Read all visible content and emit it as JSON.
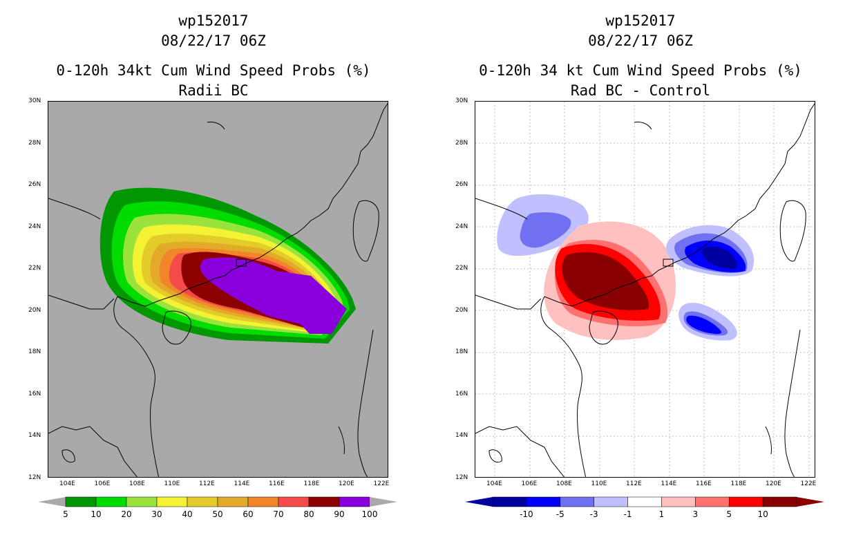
{
  "left_panel": {
    "storm_id": "wp152017",
    "datetime": "08/22/17 06Z",
    "title": "0-120h 34kt Cum Wind Speed Probs (%)",
    "subtitle": "Radii BC",
    "background_color": "#a9a9a9",
    "legend": {
      "labels": [
        "5",
        "10",
        "20",
        "30",
        "40",
        "50",
        "60",
        "70",
        "80",
        "90",
        "100"
      ],
      "colors": [
        "#009700",
        "#00db00",
        "#9ae33d",
        "#f3f334",
        "#e3cb2a",
        "#e3aa2a",
        "#f0852a",
        "#f44a4a",
        "#8c0000",
        "#8a00dd"
      ]
    }
  },
  "right_panel": {
    "storm_id": "wp152017",
    "datetime": "08/22/17 06Z",
    "title": "0-120h 34 kt Cum Wind Speed Probs (%)",
    "subtitle": "Rad BC - Control",
    "background_color": "#ffffff",
    "legend": {
      "labels": [
        "-10",
        "-5",
        "-3",
        "-1",
        "1",
        "3",
        "5",
        "10"
      ],
      "colors": [
        "#0000a0",
        "#0000ff",
        "#7070f0",
        "#c0c0ff",
        "#ffffff",
        "#ffc0c0",
        "#ff7070",
        "#ff0000",
        "#8a0000"
      ]
    }
  },
  "axes": {
    "lat_labels": [
      "30N",
      "28N",
      "26N",
      "24N",
      "22N",
      "20N",
      "18N",
      "16N",
      "14N",
      "12N"
    ],
    "lon_labels": [
      "104E",
      "106E",
      "108E",
      "110E",
      "112E",
      "114E",
      "116E",
      "118E",
      "120E",
      "122E"
    ]
  }
}
